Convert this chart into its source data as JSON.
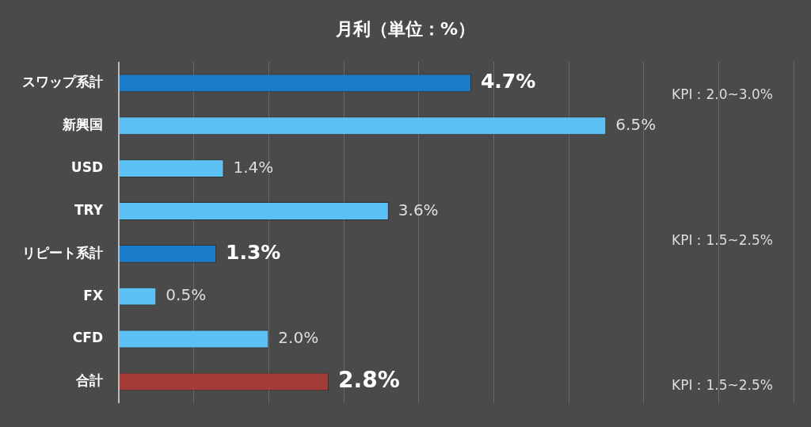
{
  "chart_data": {
    "type": "bar",
    "orientation": "horizontal",
    "title": "月利（単位：%）",
    "categories": [
      "スワップ系計",
      "新興国",
      "USD",
      "TRY",
      "リピート系計",
      "FX",
      "CFD",
      "合計"
    ],
    "values": [
      4.7,
      6.5,
      1.4,
      3.6,
      1.3,
      0.5,
      2.0,
      2.8
    ],
    "colors": [
      "#1a7dcc",
      "#5cc2f5",
      "#5cc2f5",
      "#5cc2f5",
      "#1a7dcc",
      "#5cc2f5",
      "#5cc2f5",
      "#a33b36"
    ],
    "value_labels": [
      "4.7%",
      "6.5%",
      "1.4%",
      "3.6%",
      "1.3%",
      "0.5%",
      "2.0%",
      "2.8%"
    ],
    "xlim": [
      0,
      9
    ],
    "xticks": [
      {
        "value": 0,
        "label": null
      },
      {
        "value": 1,
        "label": null
      },
      {
        "value": 2,
        "label": null
      },
      {
        "value": 3,
        "label": null
      },
      {
        "value": 4,
        "label": null
      },
      {
        "value": 5,
        "label": null
      },
      {
        "value": 6,
        "label": null
      },
      {
        "value": 7,
        "label": null
      },
      {
        "value": 8,
        "label": null
      },
      {
        "value": 9,
        "label": null
      }
    ],
    "tick_labels": "y",
    "grid": "x",
    "legend": false,
    "annotations": [
      "KPI：2.0~3.0%",
      "KPI：1.5~2.5%",
      "KPI：1.5~2.5%"
    ]
  }
}
